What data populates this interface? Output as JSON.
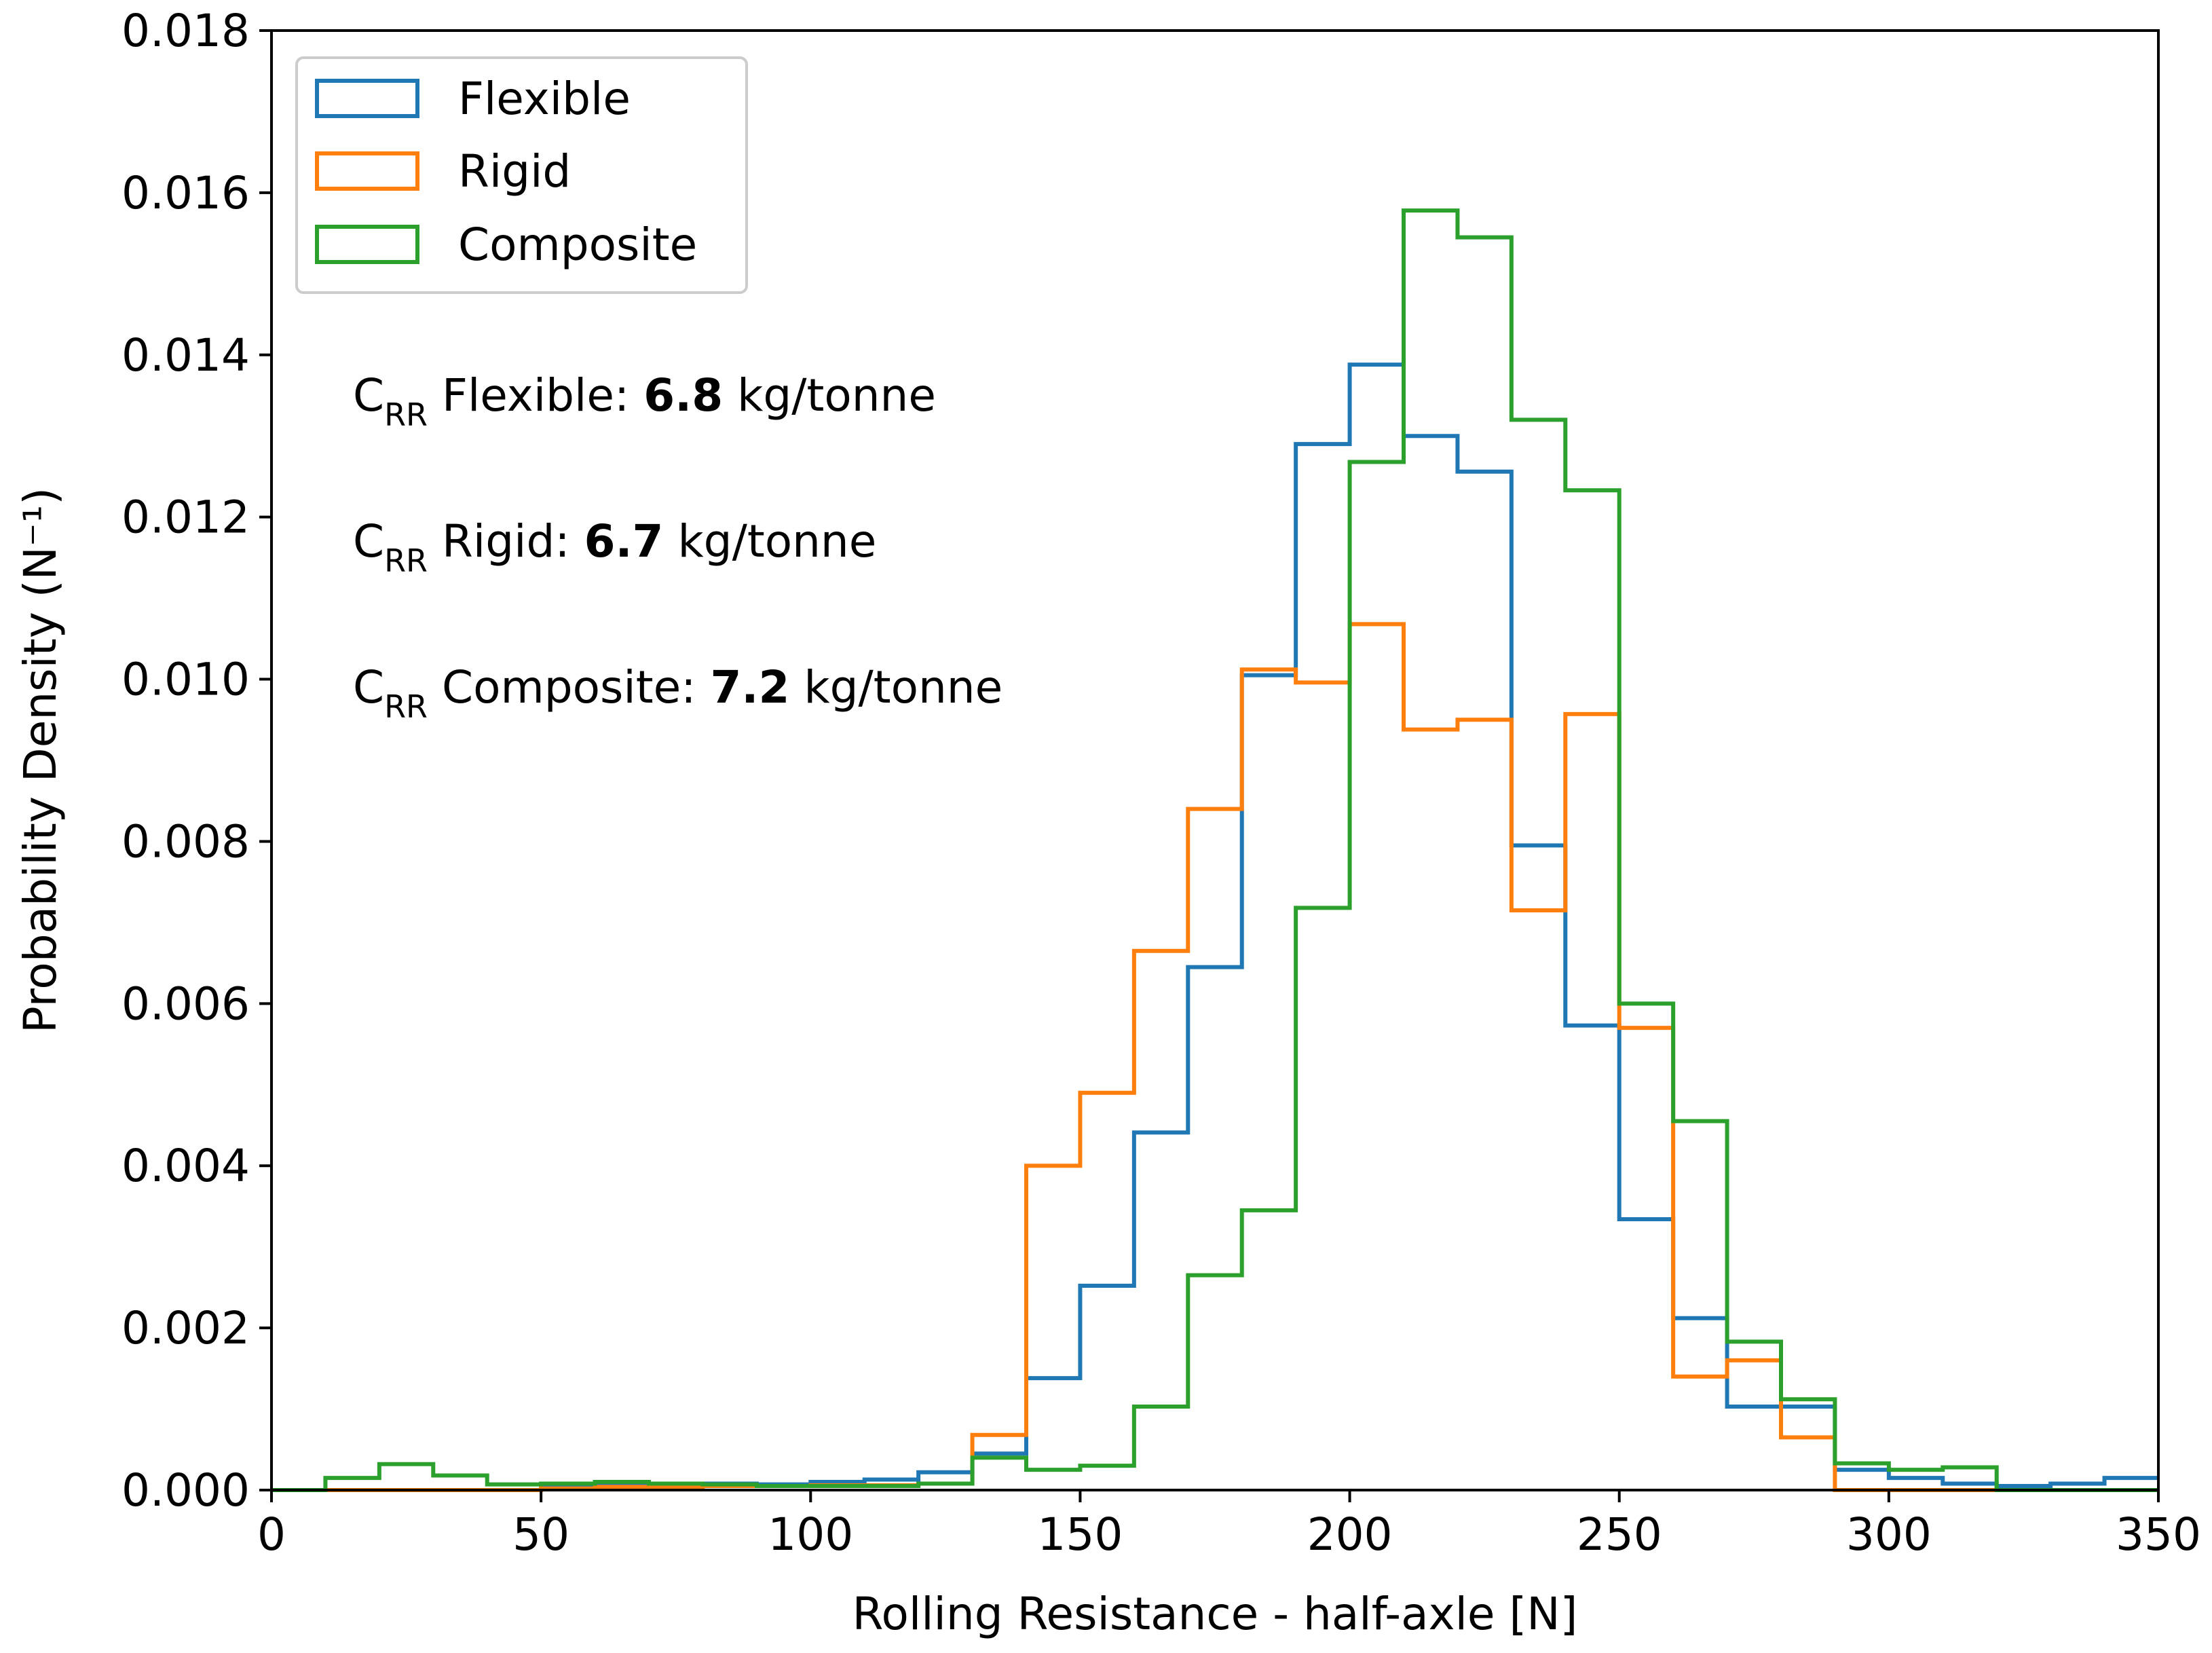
{
  "chart_data": {
    "type": "histogram-step",
    "xlabel": "Rolling Resistance - half-axle [N]",
    "ylabel": "Probability Density (N⁻¹)",
    "xlim": [
      0,
      350
    ],
    "ylim": [
      0,
      0.018
    ],
    "xticks": [
      0,
      50,
      100,
      150,
      200,
      250,
      300,
      350
    ],
    "xtick_labels": [
      "0",
      "50",
      "100",
      "150",
      "200",
      "250",
      "300",
      "350"
    ],
    "yticks": [
      0,
      0.002,
      0.004,
      0.006,
      0.008,
      0.01,
      0.012,
      0.014,
      0.016,
      0.018
    ],
    "ytick_labels": [
      "0.000",
      "0.002",
      "0.004",
      "0.006",
      "0.008",
      "0.010",
      "0.012",
      "0.014",
      "0.016",
      "0.018"
    ],
    "grid": false,
    "legend_position": "top-left",
    "bin_edges": [
      0,
      10,
      20,
      30,
      40,
      50,
      60,
      70,
      80,
      90,
      100,
      110,
      120,
      130,
      140,
      150,
      160,
      170,
      180,
      190,
      200,
      210,
      220,
      230,
      240,
      250,
      260,
      270,
      280,
      290,
      300,
      310,
      320,
      330,
      340,
      350
    ],
    "series": [
      {
        "name": "Flexible",
        "color": "#1f77b4",
        "values": [
          0,
          0,
          0,
          0,
          0,
          3e-05,
          5e-05,
          7e-05,
          8e-05,
          7e-05,
          0.0001,
          0.00013,
          0.00022,
          0.00045,
          0.00138,
          0.00252,
          0.00441,
          0.00645,
          0.01005,
          0.0129,
          0.01388,
          0.013,
          0.01256,
          0.00795,
          0.00573,
          0.00334,
          0.00212,
          0.00103,
          0.00103,
          0.00025,
          0.00015,
          8e-05,
          5e-05,
          8e-05,
          0.00015
        ]
      },
      {
        "name": "Rigid",
        "color": "#ff7f0e",
        "values": [
          0,
          0,
          0,
          0,
          0,
          2e-05,
          4e-05,
          3e-05,
          5e-05,
          5e-05,
          6e-05,
          6e-05,
          8e-05,
          0.00068,
          0.004,
          0.0049,
          0.00665,
          0.0084,
          0.01012,
          0.00996,
          0.01068,
          0.00938,
          0.0095,
          0.00715,
          0.00957,
          0.0057,
          0.0014,
          0.0016,
          0.00065,
          0,
          0,
          0,
          0,
          0,
          0
        ]
      },
      {
        "name": "Composite",
        "color": "#2ca02c",
        "values": [
          0,
          0.00015,
          0.00032,
          0.00018,
          7e-05,
          8e-05,
          0.0001,
          8e-05,
          7e-05,
          5e-05,
          5e-05,
          5e-05,
          8e-05,
          0.0004,
          0.00025,
          0.0003,
          0.00103,
          0.00265,
          0.00345,
          0.00718,
          0.01268,
          0.01578,
          0.01545,
          0.0132,
          0.01233,
          0.006,
          0.00455,
          0.00183,
          0.00112,
          0.00033,
          0.00025,
          0.00028,
          0,
          0,
          0
        ]
      }
    ],
    "annotations": [
      {
        "prefix": "C",
        "subscript": "RR",
        "label": " Flexible: ",
        "value": "6.8",
        "unit": " kg/tonne"
      },
      {
        "prefix": "C",
        "subscript": "RR",
        "label": " Rigid: ",
        "value": "6.7",
        "unit": " kg/tonne"
      },
      {
        "prefix": "C",
        "subscript": "RR",
        "label": " Composite: ",
        "value": "7.2",
        "unit": " kg/tonne"
      }
    ]
  }
}
